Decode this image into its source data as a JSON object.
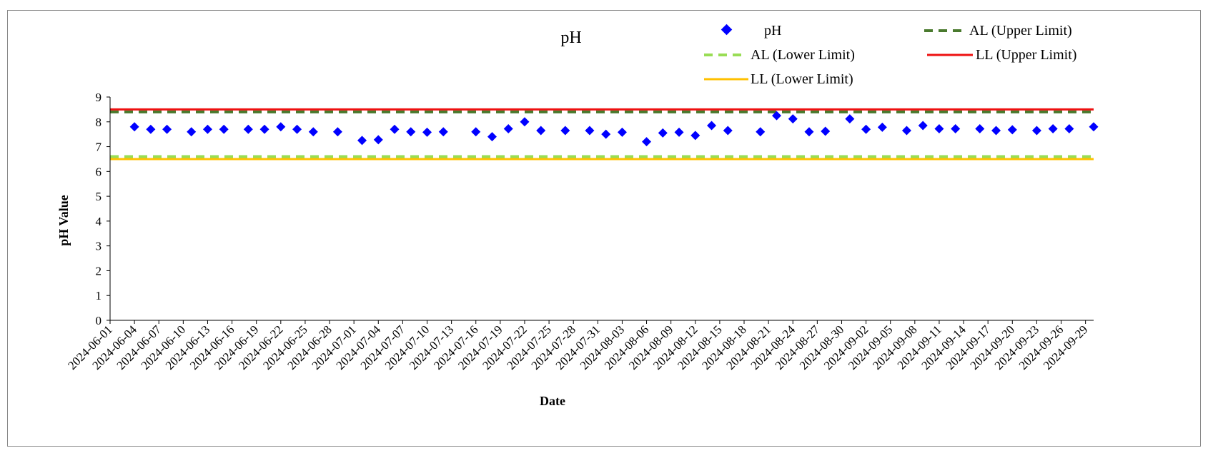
{
  "chart_data": {
    "type": "scatter",
    "title": "pH",
    "xlabel": "Date",
    "ylabel": "pH Value",
    "ylim": [
      0,
      9
    ],
    "yticks": [
      0,
      1,
      2,
      3,
      4,
      5,
      6,
      7,
      8,
      9
    ],
    "xlim": [
      "2024-06-01",
      "2024-09-30"
    ],
    "xtick_labels": [
      "2024-06-01",
      "2024-06-04",
      "2024-06-07",
      "2024-06-10",
      "2024-06-13",
      "2024-06-16",
      "2024-06-19",
      "2024-06-22",
      "2024-06-25",
      "2024-06-28",
      "2024-07-01",
      "2024-07-04",
      "2024-07-07",
      "2024-07-10",
      "2024-07-13",
      "2024-07-16",
      "2024-07-19",
      "2024-07-22",
      "2024-07-25",
      "2024-07-28",
      "2024-07-31",
      "2024-08-03",
      "2024-08-06",
      "2024-08-09",
      "2024-08-12",
      "2024-08-15",
      "2024-08-18",
      "2024-08-21",
      "2024-08-24",
      "2024-08-27",
      "2024-08-30",
      "2024-09-02",
      "2024-09-05",
      "2024-09-08",
      "2024-09-11",
      "2024-09-14",
      "2024-09-17",
      "2024-09-20",
      "2024-09-23",
      "2024-09-26",
      "2024-09-29"
    ],
    "grid": false,
    "legend_position": "top-right",
    "series": [
      {
        "name": "pH",
        "kind": "scatter",
        "marker": "diamond",
        "color": "#0000ff",
        "points": [
          {
            "x": "2024-06-04",
            "y": 7.8
          },
          {
            "x": "2024-06-06",
            "y": 7.7
          },
          {
            "x": "2024-06-08",
            "y": 7.7
          },
          {
            "x": "2024-06-11",
            "y": 7.6
          },
          {
            "x": "2024-06-13",
            "y": 7.7
          },
          {
            "x": "2024-06-15",
            "y": 7.7
          },
          {
            "x": "2024-06-18",
            "y": 7.7
          },
          {
            "x": "2024-06-20",
            "y": 7.7
          },
          {
            "x": "2024-06-22",
            "y": 7.8
          },
          {
            "x": "2024-06-24",
            "y": 7.7
          },
          {
            "x": "2024-06-26",
            "y": 7.6
          },
          {
            "x": "2024-06-29",
            "y": 7.6
          },
          {
            "x": "2024-07-02",
            "y": 7.25
          },
          {
            "x": "2024-07-04",
            "y": 7.28
          },
          {
            "x": "2024-07-06",
            "y": 7.7
          },
          {
            "x": "2024-07-08",
            "y": 7.6
          },
          {
            "x": "2024-07-10",
            "y": 7.58
          },
          {
            "x": "2024-07-12",
            "y": 7.6
          },
          {
            "x": "2024-07-16",
            "y": 7.6
          },
          {
            "x": "2024-07-18",
            "y": 7.4
          },
          {
            "x": "2024-07-20",
            "y": 7.72
          },
          {
            "x": "2024-07-22",
            "y": 8.0
          },
          {
            "x": "2024-07-24",
            "y": 7.65
          },
          {
            "x": "2024-07-27",
            "y": 7.65
          },
          {
            "x": "2024-07-30",
            "y": 7.65
          },
          {
            "x": "2024-08-01",
            "y": 7.5
          },
          {
            "x": "2024-08-03",
            "y": 7.58
          },
          {
            "x": "2024-08-06",
            "y": 7.2
          },
          {
            "x": "2024-08-08",
            "y": 7.55
          },
          {
            "x": "2024-08-10",
            "y": 7.58
          },
          {
            "x": "2024-08-12",
            "y": 7.45
          },
          {
            "x": "2024-08-14",
            "y": 7.85
          },
          {
            "x": "2024-08-16",
            "y": 7.65
          },
          {
            "x": "2024-08-20",
            "y": 7.6
          },
          {
            "x": "2024-08-22",
            "y": 8.25
          },
          {
            "x": "2024-08-24",
            "y": 8.12
          },
          {
            "x": "2024-08-26",
            "y": 7.6
          },
          {
            "x": "2024-08-28",
            "y": 7.62
          },
          {
            "x": "2024-08-31",
            "y": 8.12
          },
          {
            "x": "2024-09-02",
            "y": 7.7
          },
          {
            "x": "2024-09-04",
            "y": 7.78
          },
          {
            "x": "2024-09-07",
            "y": 7.65
          },
          {
            "x": "2024-09-09",
            "y": 7.85
          },
          {
            "x": "2024-09-11",
            "y": 7.72
          },
          {
            "x": "2024-09-13",
            "y": 7.72
          },
          {
            "x": "2024-09-16",
            "y": 7.72
          },
          {
            "x": "2024-09-18",
            "y": 7.65
          },
          {
            "x": "2024-09-20",
            "y": 7.68
          },
          {
            "x": "2024-09-23",
            "y": 7.65
          },
          {
            "x": "2024-09-25",
            "y": 7.72
          },
          {
            "x": "2024-09-27",
            "y": 7.72
          },
          {
            "x": "2024-09-30",
            "y": 7.8
          }
        ]
      },
      {
        "name": "AL (Upper Limit)",
        "kind": "hline",
        "y": 8.4,
        "style": "dashed",
        "color": "#4a7a2e"
      },
      {
        "name": "AL (Lower Limit)",
        "kind": "hline",
        "y": 6.6,
        "style": "dashed",
        "color": "#99dd55"
      },
      {
        "name": "LL (Upper Limit)",
        "kind": "hline",
        "y": 8.5,
        "style": "solid",
        "color": "#ee1111"
      },
      {
        "name": "LL (Lower Limit)",
        "kind": "hline",
        "y": 6.5,
        "style": "solid",
        "color": "#ffc000"
      }
    ]
  }
}
